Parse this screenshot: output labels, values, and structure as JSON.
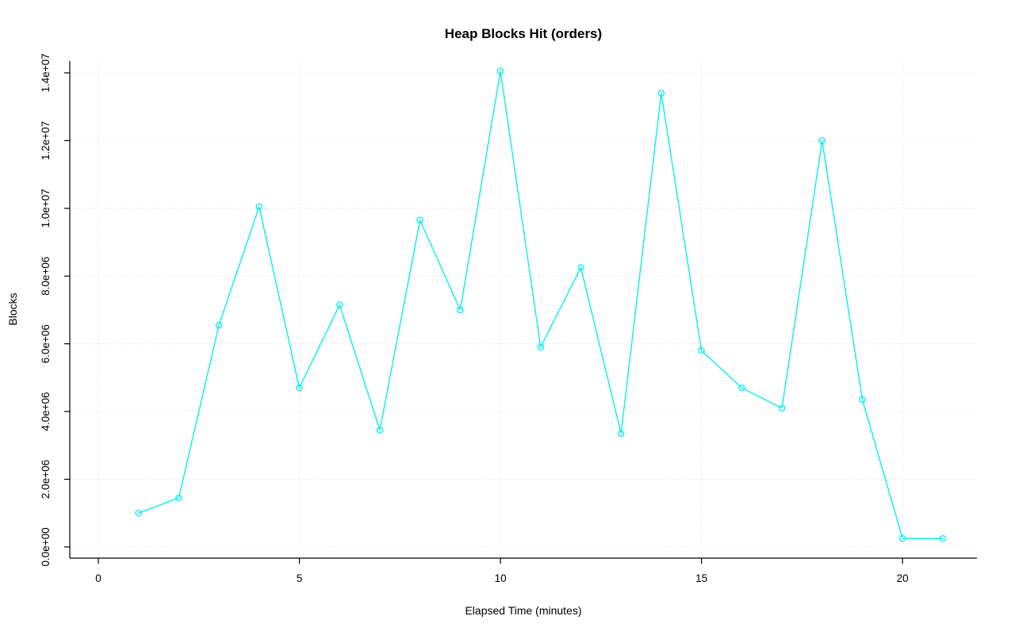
{
  "chart_data": {
    "type": "line",
    "title": "Heap Blocks Hit (orders)",
    "xlabel": "Elapsed Time (minutes)",
    "ylabel": "Blocks",
    "x": [
      1,
      2,
      3,
      4,
      5,
      6,
      7,
      8,
      9,
      10,
      11,
      12,
      13,
      14,
      15,
      16,
      17,
      18,
      19,
      20,
      21
    ],
    "y": [
      1000000,
      1450000,
      6550000,
      10050000,
      4700000,
      7150000,
      3450000,
      9650000,
      7000000,
      14050000,
      5900000,
      8250000,
      3350000,
      13400000,
      5800000,
      4700000,
      4100000,
      12000000,
      4350000,
      250000,
      250000
    ],
    "x_ticks": [
      {
        "value": 0,
        "label": "0"
      },
      {
        "value": 5,
        "label": "5"
      },
      {
        "value": 10,
        "label": "10"
      },
      {
        "value": 15,
        "label": "15"
      },
      {
        "value": 20,
        "label": "20"
      }
    ],
    "y_ticks": [
      {
        "value": 0,
        "label": "0.0e+00"
      },
      {
        "value": 2000000,
        "label": "2.0e+06"
      },
      {
        "value": 4000000,
        "label": "4.0e+06"
      },
      {
        "value": 6000000,
        "label": "6.0e+06"
      },
      {
        "value": 8000000,
        "label": "8.0e+06"
      },
      {
        "value": 10000000,
        "label": "1.0e+07"
      },
      {
        "value": 12000000,
        "label": "1.2e+07"
      },
      {
        "value": 14000000,
        "label": "1.4e+07"
      }
    ],
    "xlim": [
      -0.71,
      21.85
    ],
    "ylim": [
      -330000,
      14350000
    ],
    "grid": true,
    "legend": "none",
    "line_color": "#19eeee",
    "marker": "open-circle",
    "grid_color": "#d9d9d9",
    "axis_color": "#000000",
    "background_color": "#ffffff"
  }
}
